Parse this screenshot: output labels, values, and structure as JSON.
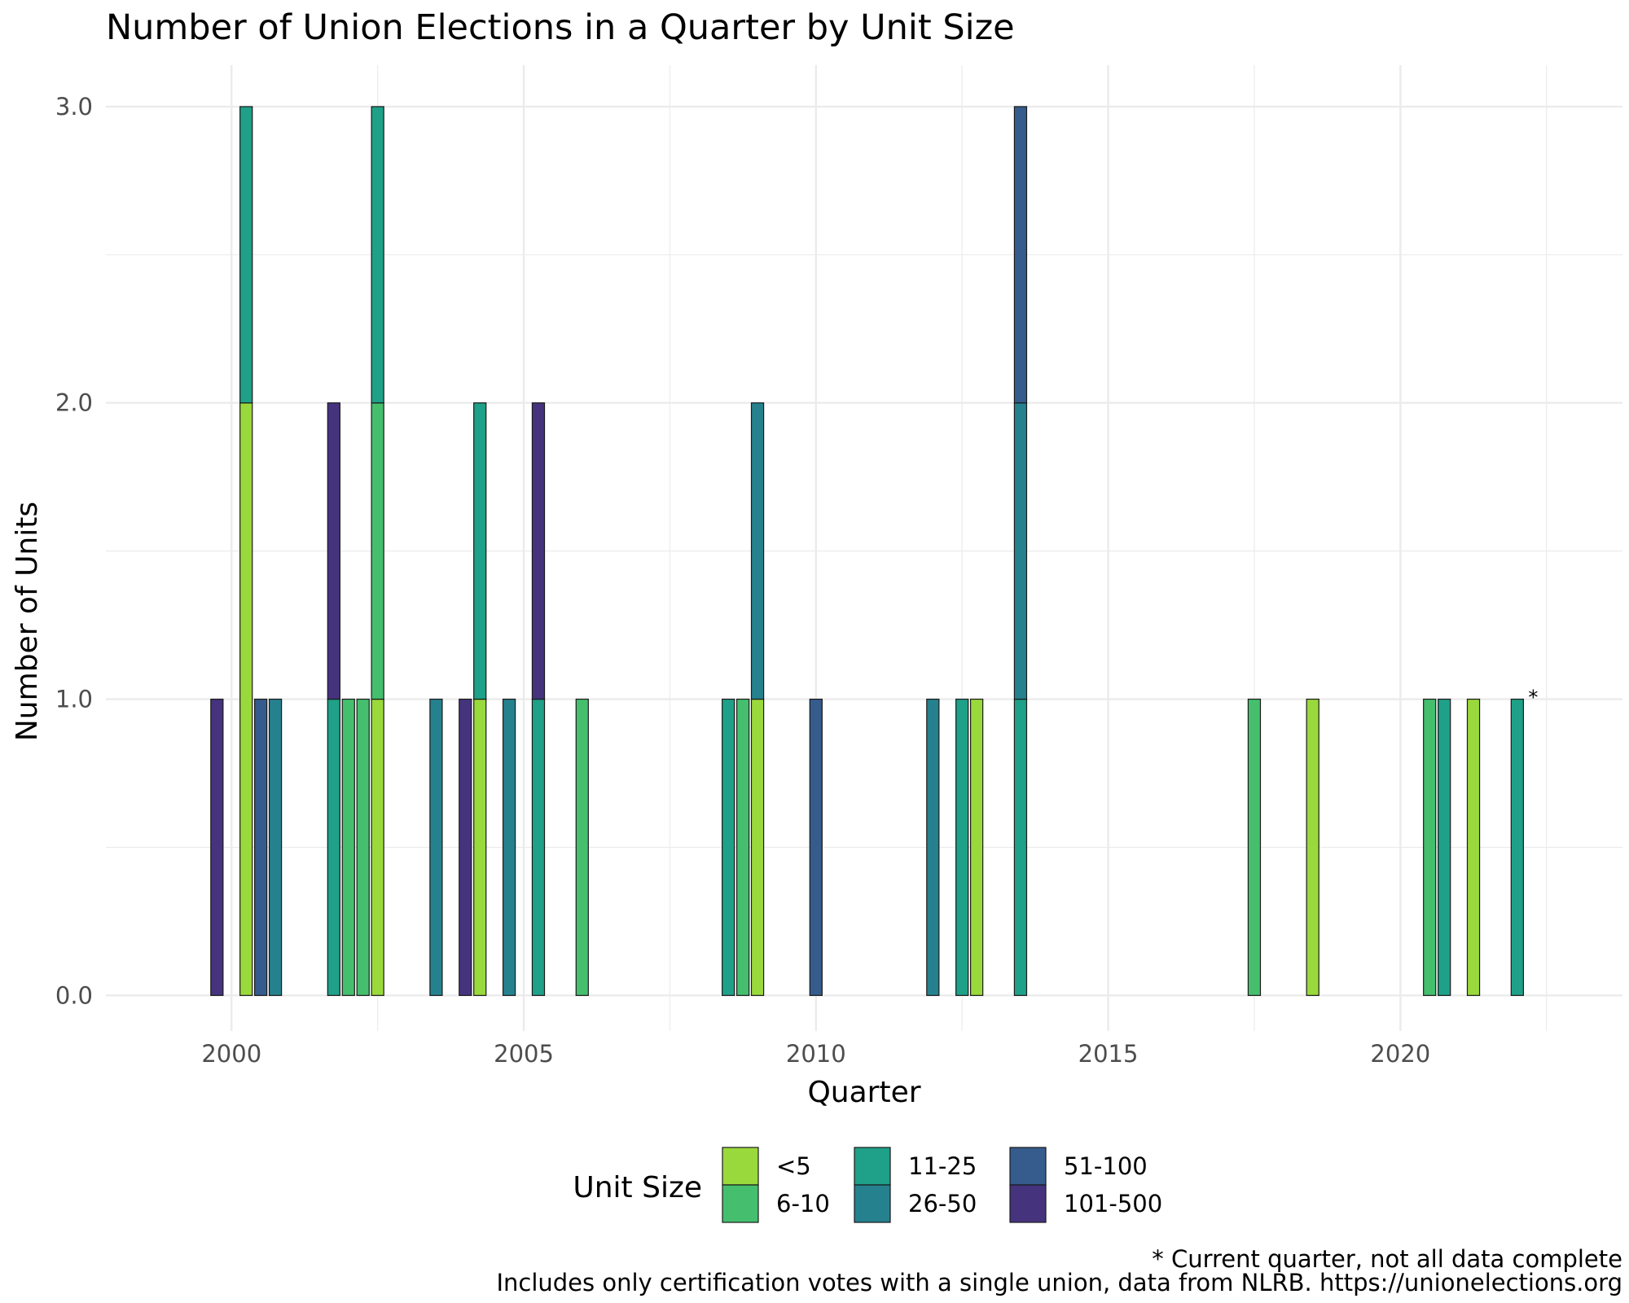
{
  "chart_data": {
    "type": "bar",
    "stacked": true,
    "title": "Number of Union Elections in a Quarter by Unit Size",
    "xlabel": "Quarter",
    "ylabel": "Number of Units",
    "xlim": [
      1997.85,
      2023.8
    ],
    "ylim": [
      -0.12,
      3.14
    ],
    "x_ticks": [
      2000,
      2005,
      2010,
      2015,
      2020
    ],
    "x_tick_labels": [
      "2000",
      "2005",
      "2010",
      "2015",
      "2020"
    ],
    "y_ticks": [
      0,
      1,
      2,
      3
    ],
    "y_tick_labels": [
      "0.0",
      "1.0",
      "2.0",
      "3.0"
    ],
    "grid": true,
    "legend": {
      "title": "Unit Size",
      "position": "bottom",
      "entries": [
        "<5",
        "6-10",
        "11-25",
        "26-50",
        "51-100",
        "101-500"
      ]
    },
    "series_colors": {
      "<5": "#9ad93c",
      "6-10": "#45bf6e",
      "11-25": "#1fa088",
      "26-50": "#26818e",
      "51-100": "#365c8d",
      "101-500": "#46337e"
    },
    "stack_order_bottom_to_top": [
      "<5",
      "6-10",
      "11-25",
      "26-50",
      "51-100",
      "101-500"
    ],
    "bars": [
      {
        "x": 1999.75,
        "counts": {
          "101-500": 1
        }
      },
      {
        "x": 2000.25,
        "counts": {
          "<5": 2,
          "11-25": 1
        }
      },
      {
        "x": 2000.5,
        "counts": {
          "51-100": 1
        }
      },
      {
        "x": 2000.75,
        "counts": {
          "26-50": 1
        }
      },
      {
        "x": 2001.75,
        "counts": {
          "11-25": 1,
          "101-500": 1
        }
      },
      {
        "x": 2002.0,
        "counts": {
          "6-10": 1
        }
      },
      {
        "x": 2002.25,
        "counts": {
          "6-10": 1
        }
      },
      {
        "x": 2002.5,
        "counts": {
          "<5": 1,
          "6-10": 1,
          "11-25": 1
        }
      },
      {
        "x": 2003.5,
        "counts": {
          "26-50": 1
        }
      },
      {
        "x": 2004.0,
        "counts": {
          "101-500": 1
        }
      },
      {
        "x": 2004.25,
        "counts": {
          "<5": 1,
          "11-25": 1
        }
      },
      {
        "x": 2004.75,
        "counts": {
          "26-50": 1
        }
      },
      {
        "x": 2005.25,
        "counts": {
          "11-25": 1,
          "101-500": 1
        }
      },
      {
        "x": 2006.0,
        "counts": {
          "6-10": 1
        }
      },
      {
        "x": 2008.5,
        "counts": {
          "11-25": 1
        }
      },
      {
        "x": 2008.75,
        "counts": {
          "6-10": 1
        }
      },
      {
        "x": 2009.0,
        "counts": {
          "<5": 1,
          "26-50": 1
        }
      },
      {
        "x": 2010.0,
        "counts": {
          "51-100": 1
        }
      },
      {
        "x": 2012.0,
        "counts": {
          "26-50": 1
        }
      },
      {
        "x": 2012.5,
        "counts": {
          "11-25": 1
        }
      },
      {
        "x": 2012.75,
        "counts": {
          "<5": 1
        }
      },
      {
        "x": 2013.5,
        "counts": {
          "11-25": 1,
          "26-50": 1,
          "51-100": 1
        }
      },
      {
        "x": 2017.5,
        "counts": {
          "6-10": 1
        }
      },
      {
        "x": 2018.5,
        "counts": {
          "<5": 1
        }
      },
      {
        "x": 2020.5,
        "counts": {
          "6-10": 1
        }
      },
      {
        "x": 2020.75,
        "counts": {
          "11-25": 1
        }
      },
      {
        "x": 2021.25,
        "counts": {
          "<5": 1
        }
      },
      {
        "x": 2022.0,
        "counts": {
          "11-25": 1
        }
      }
    ],
    "annotations": [
      {
        "x": 2022.0,
        "y": 1,
        "text": "*"
      }
    ]
  },
  "captions": {
    "note": "* Current quarter, not all data complete",
    "source": "Includes only certification votes with a single union, data from NLRB. https://unionelections.org"
  }
}
